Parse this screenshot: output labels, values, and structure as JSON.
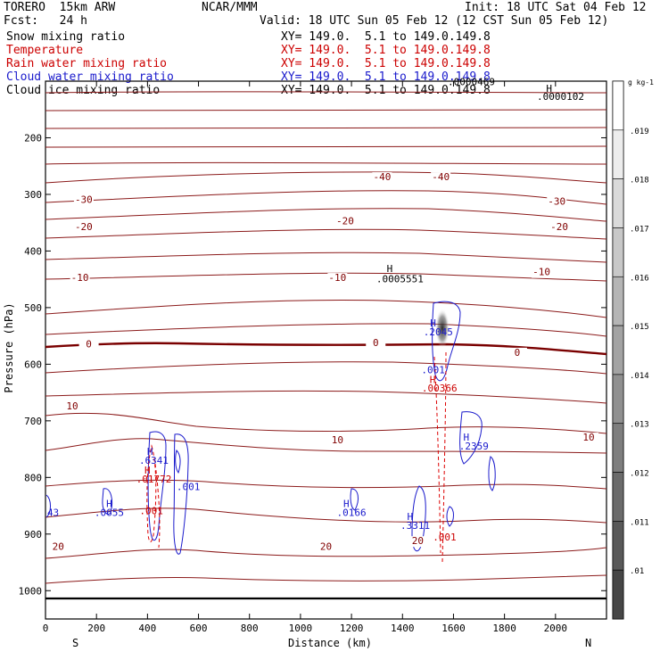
{
  "header": {
    "model": "TORERO  15km ARW",
    "org": "NCAR/MMM",
    "init": "Init: 18 UTC Sat 04 Feb 12",
    "fcst": "Fcst:   24 h",
    "valid": "Valid: 18 UTC Sun 05 Feb 12 (12 CST Sun 05 Feb 12)"
  },
  "fields": [
    {
      "name": "Snow mixing ratio",
      "xy": "XY= 149.0.  5.1 to 149.0.149.8",
      "color": "#000000"
    },
    {
      "name": "Temperature",
      "xy": "XY= 149.0.  5.1 to 149.0.149.8",
      "color": "#cc0000"
    },
    {
      "name": "Rain water mixing ratio",
      "xy": "XY= 149.0.  5.1 to 149.0.149.8",
      "color": "#cc0000"
    },
    {
      "name": "Cloud water mixing ratio",
      "xy": "XY= 149.0.  5.1 to 149.0.149.8",
      "color": "#1a1acc"
    },
    {
      "name": "Cloud ice mixing ratio",
      "xy": "XY= 149.0.  5.1 to 149.0.149.8",
      "color": "#000000"
    }
  ],
  "chart_data": {
    "type": "cross-section contour",
    "xlabel": "Distance (km)",
    "ylabel": "Pressure (hPa)",
    "xlim": [
      0,
      2200
    ],
    "ylim": [
      1050,
      100
    ],
    "x_ticks": [
      "0",
      "200",
      "400",
      "600",
      "800",
      "1000",
      "1200",
      "1400",
      "1600",
      "1800",
      "2000"
    ],
    "x_tick_values": [
      0,
      200,
      400,
      600,
      800,
      1000,
      1200,
      1400,
      1600,
      1800,
      2000
    ],
    "y_ticks": [
      "200",
      "300",
      "400",
      "500",
      "600",
      "700",
      "800",
      "900",
      "1000"
    ],
    "y_tick_values": [
      200,
      300,
      400,
      500,
      600,
      700,
      800,
      900,
      1000
    ],
    "left_label": "S",
    "right_label": "N",
    "colorbar": {
      "unit": "g kg-1",
      "ticks": [
        ".01",
        ".011",
        ".012",
        ".013",
        ".014",
        ".015",
        ".016",
        ".017",
        ".018",
        ".019"
      ]
    },
    "temperature_labels": [
      {
        "text": "-40",
        "x": 1320,
        "p": 275
      },
      {
        "text": "-40",
        "x": 1550,
        "p": 275
      },
      {
        "text": "-30",
        "x": 150,
        "p": 315
      },
      {
        "text": "-30",
        "x": 2005,
        "p": 318
      },
      {
        "text": "-20",
        "x": 150,
        "p": 363
      },
      {
        "text": "-20",
        "x": 1175,
        "p": 353
      },
      {
        "text": "-20",
        "x": 2015,
        "p": 363
      },
      {
        "text": "-10",
        "x": 135,
        "p": 453
      },
      {
        "text": "-10",
        "x": 1145,
        "p": 453
      },
      {
        "text": "-10",
        "x": 1945,
        "p": 443
      },
      {
        "text": "0",
        "x": 170,
        "p": 570
      },
      {
        "text": "0",
        "x": 1295,
        "p": 568
      },
      {
        "text": "0",
        "x": 1850,
        "p": 585
      },
      {
        "text": "10",
        "x": 105,
        "p": 680
      },
      {
        "text": "10",
        "x": 1145,
        "p": 740
      },
      {
        "text": "10",
        "x": 2130,
        "p": 735
      },
      {
        "text": "20",
        "x": 50,
        "p": 928
      },
      {
        "text": "20",
        "x": 1100,
        "p": 928
      },
      {
        "text": "20",
        "x": 1460,
        "p": 918
      }
    ],
    "extrema_labels": [
      {
        "text": "H",
        "x": 1350,
        "p": 437,
        "color": "#000000"
      },
      {
        "text": ".0005551",
        "x": 1390,
        "p": 455,
        "color": "#000000"
      },
      {
        "text": "H",
        "x": 1975,
        "p": 119,
        "color": "#000000"
      },
      {
        "text": ".0000102",
        "x": 2020,
        "p": 133,
        "color": "#000000"
      },
      {
        "text": ".0000469",
        "x": 1670,
        "p": 107,
        "color": "#000000"
      },
      {
        "text": "H",
        "x": 1520,
        "p": 533,
        "color": "#1a1acc"
      },
      {
        "text": ".2045",
        "x": 1540,
        "p": 549,
        "color": "#1a1acc"
      },
      {
        "text": ".001",
        "x": 1520,
        "p": 616,
        "color": "#1a1acc"
      },
      {
        "text": "H",
        "x": 1518,
        "p": 633,
        "color": "#cc0000"
      },
      {
        "text": ".00366",
        "x": 1545,
        "p": 648,
        "color": "#cc0000"
      },
      {
        "text": "H",
        "x": 1650,
        "p": 735,
        "color": "#1a1acc"
      },
      {
        "text": ".2359",
        "x": 1680,
        "p": 751,
        "color": "#1a1acc"
      },
      {
        "text": "H",
        "x": 410,
        "p": 760,
        "color": "#1a1acc"
      },
      {
        "text": ".6341",
        "x": 425,
        "p": 776,
        "color": "#1a1acc"
      },
      {
        "text": "H",
        "x": 400,
        "p": 793,
        "color": "#cc0000"
      },
      {
        "text": ".01772",
        "x": 425,
        "p": 809,
        "color": "#cc0000"
      },
      {
        "text": ".001",
        "x": 560,
        "p": 822,
        "color": "#1a1acc"
      },
      {
        "text": ".001",
        "x": 415,
        "p": 865,
        "color": "#cc0000"
      },
      {
        "text": "H",
        "x": 250,
        "p": 852,
        "color": "#1a1acc"
      },
      {
        "text": ".0655",
        "x": 250,
        "p": 868,
        "color": "#1a1acc"
      },
      {
        "text": "43",
        "x": 30,
        "p": 868,
        "color": "#1a1acc"
      },
      {
        "text": "H",
        "x": 1180,
        "p": 852,
        "color": "#1a1acc"
      },
      {
        "text": ".0166",
        "x": 1200,
        "p": 868,
        "color": "#1a1acc"
      },
      {
        "text": "H",
        "x": 1430,
        "p": 875,
        "color": "#1a1acc"
      },
      {
        "text": ".3311",
        "x": 1450,
        "p": 891,
        "color": "#1a1acc"
      },
      {
        "text": ".001",
        "x": 1565,
        "p": 911,
        "color": "#cc0000"
      }
    ]
  }
}
